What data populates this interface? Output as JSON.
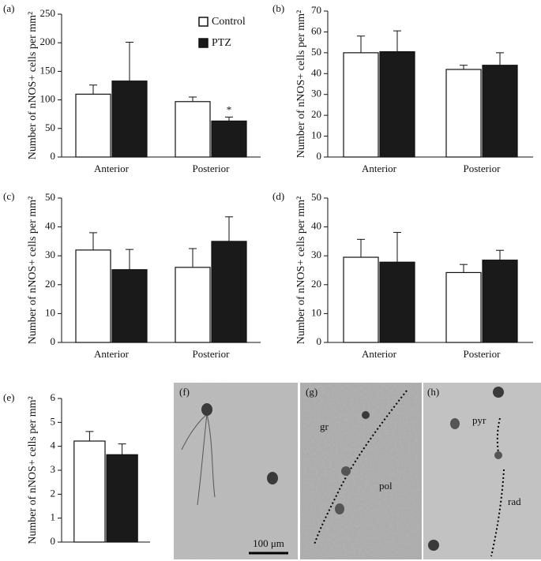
{
  "chart_data": [
    {
      "type": "bar",
      "panel": "(a)",
      "ylabel": "Number of nNOS+ cells per mm²",
      "categories": [
        "Anterior",
        "Posterior"
      ],
      "series": [
        {
          "name": "Control",
          "color": "#ffffff",
          "values": [
            110,
            97
          ],
          "errors": [
            16,
            8
          ]
        },
        {
          "name": "PTZ",
          "color": "#1a1a1a",
          "values": [
            133,
            63
          ],
          "errors": [
            68,
            7
          ]
        }
      ],
      "ylim": [
        0,
        250
      ],
      "yticks": [
        0,
        50,
        100,
        150,
        200,
        250
      ],
      "legend": "upper right",
      "annotations": [
        {
          "text": "*",
          "category": "Posterior",
          "series": "PTZ"
        }
      ]
    },
    {
      "type": "bar",
      "panel": "(b)",
      "ylabel": "Number of nNOS+ cells per mm²",
      "categories": [
        "Anterior",
        "Posterior"
      ],
      "series": [
        {
          "color": "#ffffff",
          "values": [
            50,
            42
          ],
          "errors": [
            8,
            2
          ]
        },
        {
          "color": "#1a1a1a",
          "values": [
            50.5,
            44
          ],
          "errors": [
            10,
            6
          ]
        }
      ],
      "ylim": [
        0,
        70
      ],
      "yticks": [
        0,
        10,
        20,
        30,
        40,
        50,
        60,
        70
      ]
    },
    {
      "type": "bar",
      "panel": "(c)",
      "ylabel": "Number of nNOS+ cells per mm²",
      "categories": [
        "Anterior",
        "Posterior"
      ],
      "series": [
        {
          "color": "#ffffff",
          "values": [
            32,
            26
          ],
          "errors": [
            6,
            6.5
          ]
        },
        {
          "color": "#1a1a1a",
          "values": [
            25.2,
            35
          ],
          "errors": [
            7,
            8.5
          ]
        }
      ],
      "ylim": [
        0,
        50
      ],
      "yticks": [
        0,
        10,
        20,
        30,
        40,
        50
      ]
    },
    {
      "type": "bar",
      "panel": "(d)",
      "ylabel": "Number of nNOS+ cells per mm²",
      "categories": [
        "Anterior",
        "Posterior"
      ],
      "series": [
        {
          "color": "#ffffff",
          "values": [
            29.5,
            24.2
          ],
          "errors": [
            6.2,
            2.8
          ]
        },
        {
          "color": "#1a1a1a",
          "values": [
            27.8,
            28.5
          ],
          "errors": [
            10.3,
            3.4
          ]
        }
      ],
      "ylim": [
        0,
        50
      ],
      "yticks": [
        0,
        10,
        20,
        30,
        40,
        50
      ]
    },
    {
      "type": "bar",
      "panel": "(e)",
      "ylabel": "Number of nNOS+ cells per mm²",
      "categories": [
        null
      ],
      "series": [
        {
          "color": "#ffffff",
          "values": [
            4.22
          ],
          "errors": [
            0.4
          ]
        },
        {
          "color": "#1a1a1a",
          "values": [
            3.65
          ],
          "errors": [
            0.45
          ]
        }
      ],
      "ylim": [
        0,
        6
      ],
      "yticks": [
        0,
        1,
        2,
        3,
        4,
        5,
        6
      ]
    }
  ],
  "micrographs": [
    {
      "panel": "(f)",
      "labels": [],
      "scale_bar": "100 μm"
    },
    {
      "panel": "(g)",
      "labels": [
        "gr",
        "pol"
      ]
    },
    {
      "panel": "(h)",
      "labels": [
        "pyr",
        "rad"
      ]
    }
  ]
}
